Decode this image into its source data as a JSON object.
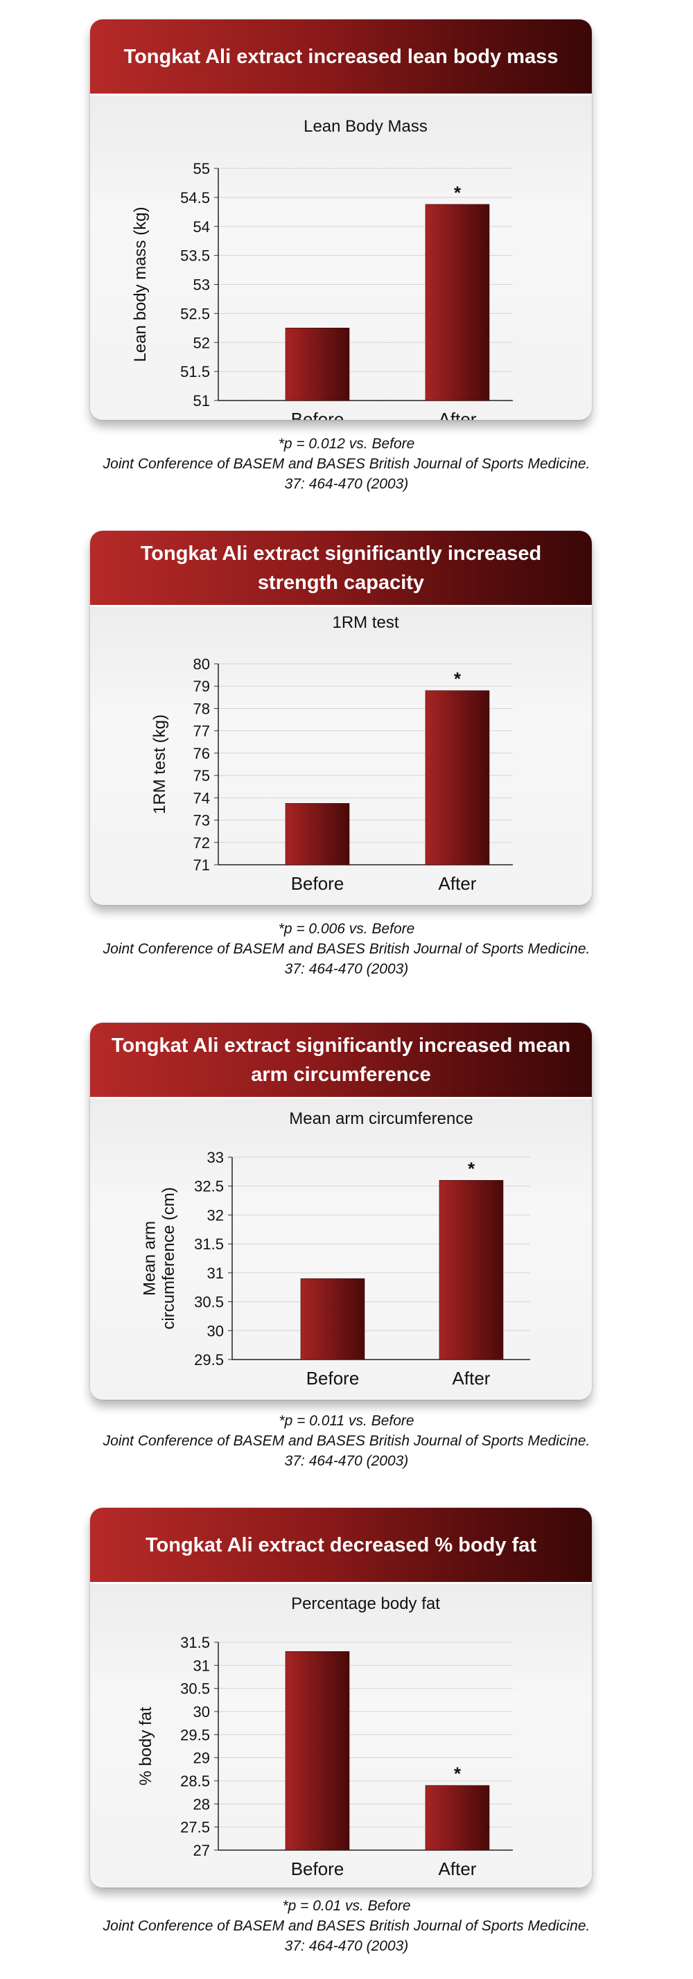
{
  "colors": {
    "header_start": "#b52a28",
    "header_end": "#3a0707",
    "bar_light": "#a82424",
    "bar_dark": "#4a0909"
  },
  "panels": [
    {
      "header": "Tongkat Ali extract increased lean body mass",
      "footnote": "*p = 0.012 vs. Before",
      "citation": "Joint Conference of BASEM and BASES British Journal of Sports Medicine.",
      "citation_ref": "37: 464-470 (2003)"
    },
    {
      "header": "Tongkat Ali extract significantly increased strength capacity",
      "footnote": "*p = 0.006 vs. Before",
      "citation": "Joint Conference of BASEM and BASES British Journal of Sports Medicine.",
      "citation_ref": "37: 464-470 (2003)"
    },
    {
      "header": "Tongkat Ali extract significantly increased mean arm circumference",
      "footnote": "*p = 0.011 vs. Before",
      "citation": "Joint Conference of BASEM and BASES British Journal of Sports Medicine.",
      "citation_ref": "37: 464-470 (2003)"
    },
    {
      "header": "Tongkat Ali extract decreased % body fat",
      "footnote": "*p = 0.01 vs. Before",
      "citation": "Joint Conference of BASEM and BASES British Journal of Sports Medicine.",
      "citation_ref": "37: 464-470 (2003)"
    }
  ],
  "chart_data": [
    {
      "type": "bar",
      "title": "Lean Body Mass",
      "ylabel": "Lean body mass (kg)",
      "xlabel": "",
      "categories": [
        "Before",
        "After"
      ],
      "values": [
        52.25,
        54.38
      ],
      "annotations": [
        "",
        "*"
      ],
      "ylim": [
        51,
        55
      ],
      "ticks": [
        "51",
        "51.5",
        "52",
        "52.5",
        "53",
        "53.5",
        "54",
        "54.5",
        "55"
      ],
      "grid": true,
      "legend": "none"
    },
    {
      "type": "bar",
      "title": "1RM test",
      "ylabel": "1RM test (kg)",
      "xlabel": "",
      "categories": [
        "Before",
        "After"
      ],
      "values": [
        73.75,
        78.8
      ],
      "annotations": [
        "",
        "*"
      ],
      "ylim": [
        71,
        80
      ],
      "ticks": [
        "71",
        "72",
        "73",
        "74",
        "75",
        "76",
        "77",
        "78",
        "79",
        "80"
      ],
      "grid": true,
      "legend": "none"
    },
    {
      "type": "bar",
      "title": "Mean arm circumference",
      "ylabel": "Mean arm circumference (cm)",
      "xlabel": "",
      "categories": [
        "Before",
        "After"
      ],
      "values": [
        30.9,
        32.6
      ],
      "annotations": [
        "",
        "*"
      ],
      "ylim": [
        29.5,
        33
      ],
      "ticks": [
        "29.5",
        "30",
        "30.5",
        "31",
        "31.5",
        "32",
        "32.5",
        "33"
      ],
      "grid": true,
      "legend": "none"
    },
    {
      "type": "bar",
      "title": "Percentage body fat",
      "ylabel": "% body fat",
      "xlabel": "",
      "categories": [
        "Before",
        "After"
      ],
      "values": [
        31.3,
        28.4
      ],
      "annotations": [
        "",
        "*"
      ],
      "ylim": [
        27,
        31.5
      ],
      "ticks": [
        "27",
        "27.5",
        "28",
        "28.5",
        "29",
        "29.5",
        "30",
        "30.5",
        "31",
        "31.5"
      ],
      "grid": true,
      "legend": "none"
    }
  ]
}
